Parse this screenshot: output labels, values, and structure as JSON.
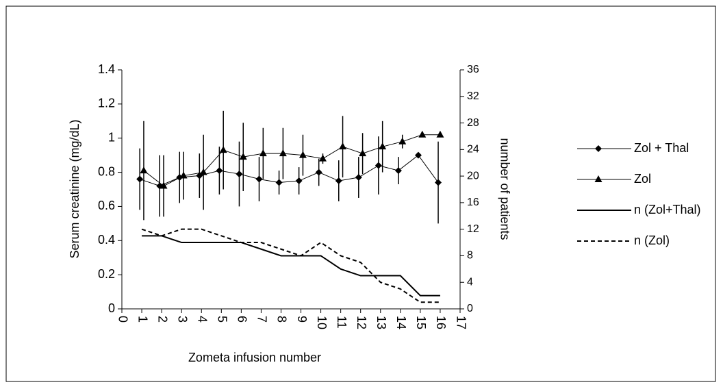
{
  "chart_data": {
    "type": "line",
    "xlabel": "Zometa infusion number",
    "ylabel": "Serum creatinine (mg/dL)",
    "y2label": "number of patients",
    "xlim": [
      0,
      17
    ],
    "xticks": [
      0,
      1,
      2,
      3,
      4,
      5,
      6,
      7,
      8,
      9,
      10,
      11,
      12,
      13,
      14,
      15,
      16,
      17
    ],
    "ylim": [
      0,
      1.4
    ],
    "yticks": [
      0,
      0.2,
      0.4,
      0.6,
      0.8,
      1,
      1.2,
      1.4
    ],
    "y2lim": [
      0,
      36
    ],
    "y2ticks": [
      0,
      4,
      8,
      12,
      16,
      20,
      24,
      28,
      32,
      36
    ],
    "legend": "right",
    "series": [
      {
        "name": "Zol + Thal",
        "color": "#000000",
        "marker": "diamond",
        "linestyle": "solid",
        "axis": "y",
        "x": [
          0.9,
          1.9,
          2.9,
          3.9,
          4.9,
          5.9,
          6.9,
          7.9,
          8.9,
          9.9,
          10.9,
          11.9,
          12.9,
          13.9,
          14.9,
          15.9
        ],
        "values": [
          0.76,
          0.72,
          0.77,
          0.78,
          0.81,
          0.79,
          0.76,
          0.74,
          0.75,
          0.8,
          0.75,
          0.77,
          0.84,
          0.81,
          0.9,
          0.74
        ],
        "errors": [
          0.18,
          0.18,
          0.15,
          0.13,
          0.14,
          0.19,
          0.13,
          0.07,
          0.08,
          0.08,
          0.12,
          0.12,
          0.17,
          0.08,
          null,
          0.24
        ]
      },
      {
        "name": "Zol",
        "color": "#000000",
        "marker": "triangle",
        "linestyle": "solid",
        "axis": "y",
        "x": [
          1.1,
          2.1,
          3.1,
          4.1,
          5.1,
          6.1,
          7.1,
          8.1,
          9.1,
          10.1,
          11.1,
          12.1,
          13.1,
          14.1,
          15.1,
          16.0
        ],
        "values": [
          0.81,
          0.72,
          0.78,
          0.8,
          0.93,
          0.89,
          0.91,
          0.91,
          0.9,
          0.88,
          0.95,
          0.91,
          0.95,
          0.98,
          1.02,
          1.02
        ],
        "errors": [
          0.29,
          0.18,
          0.14,
          0.22,
          0.23,
          0.2,
          0.15,
          0.15,
          0.12,
          0.03,
          0.18,
          0.12,
          0.15,
          0.04,
          null,
          null
        ]
      },
      {
        "name": "n (Zol+Thal)",
        "color": "#000000",
        "marker": "none",
        "linestyle": "solid",
        "axis": "y2",
        "x": [
          1,
          2,
          3,
          4,
          5,
          6,
          7,
          8,
          9,
          10,
          11,
          12,
          13,
          14,
          15,
          16
        ],
        "values": [
          11,
          11,
          10,
          10,
          10,
          10,
          9,
          8,
          8,
          8,
          6,
          5,
          5,
          5,
          2,
          2
        ]
      },
      {
        "name": "n (Zol)",
        "color": "#000000",
        "marker": "none",
        "linestyle": "dashed",
        "axis": "y2",
        "x": [
          1,
          2,
          3,
          4,
          5,
          6,
          7,
          8,
          9,
          10,
          11,
          12,
          13,
          14,
          15,
          16
        ],
        "values": [
          12,
          11,
          12,
          12,
          11,
          10,
          10,
          9,
          8,
          10,
          8,
          7,
          4,
          3,
          1,
          1
        ]
      }
    ]
  }
}
